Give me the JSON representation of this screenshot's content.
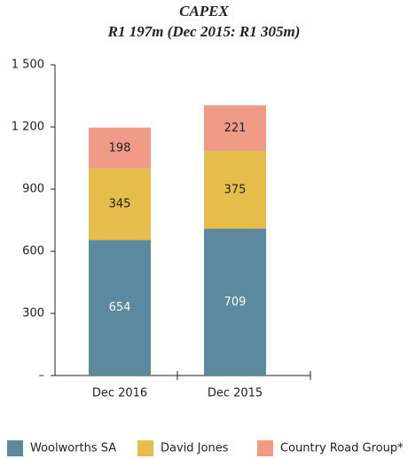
{
  "chart_data": {
    "type": "stacked_bar",
    "title": "CAPEX",
    "subtitle": "R1 197m (Dec 2015: R1 305m)",
    "categories": [
      "Dec 2016",
      "Dec 2015"
    ],
    "series": [
      {
        "name": "Woolworths SA",
        "color": "#5b8a9e",
        "values": [
          654,
          709
        ]
      },
      {
        "name": "David Jones",
        "color": "#e6bc4a",
        "values": [
          345,
          375
        ]
      },
      {
        "name": "Country Road Group*",
        "color": "#f09a88",
        "values": [
          198,
          221
        ]
      }
    ],
    "ylim": [
      0,
      1500
    ],
    "yticks": [
      {
        "value": 0,
        "label": "–"
      },
      300,
      600,
      900,
      {
        "value": 1200,
        "label": "1 200"
      },
      {
        "value": 1500,
        "label": "1 500"
      }
    ],
    "legend": "bottom"
  }
}
